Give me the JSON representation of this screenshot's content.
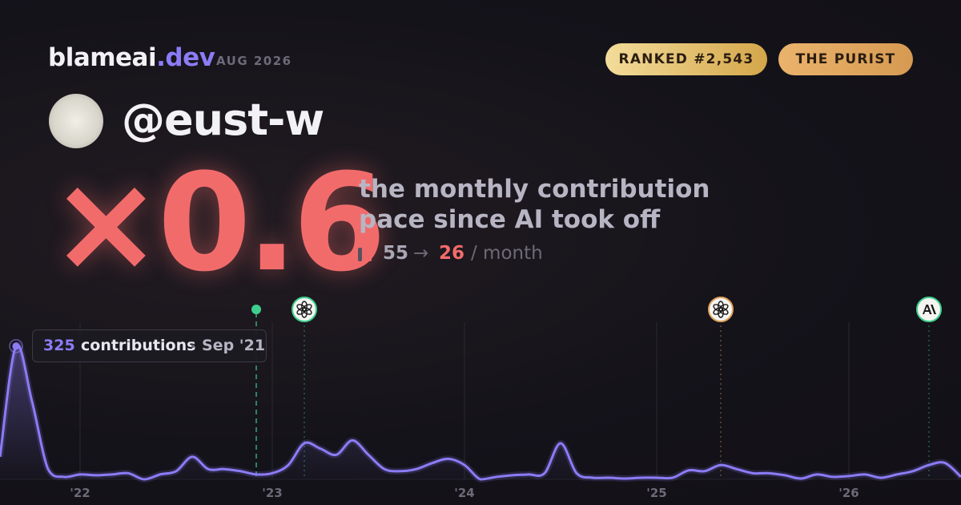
{
  "header": {
    "brand": "blameai",
    "brand_tld": ".dev",
    "date": "AUG 2026"
  },
  "badges": [
    "RANKED #2,543",
    "THE PURIST"
  ],
  "user": {
    "handle": "@eust-w"
  },
  "headline": {
    "multiplier": "×0.6",
    "caption_lines": [
      "the monthly contribution",
      "pace since AI took off"
    ],
    "before": "55",
    "arrow": "→",
    "after": "26",
    "unit": "/ month"
  },
  "chart_data": {
    "type": "line",
    "x": [
      "2021-08",
      "2021-09",
      "2021-10",
      "2021-11",
      "2021-12",
      "2022-01",
      "2022-02",
      "2022-03",
      "2022-04",
      "2022-05",
      "2022-06",
      "2022-07",
      "2022-08",
      "2022-09",
      "2022-10",
      "2022-11",
      "2022-12",
      "2023-01",
      "2023-02",
      "2023-03",
      "2023-04",
      "2023-05",
      "2023-06",
      "2023-07",
      "2023-08",
      "2023-09",
      "2023-10",
      "2023-11",
      "2023-12",
      "2024-01",
      "2024-02",
      "2024-03",
      "2024-04",
      "2024-05",
      "2024-06",
      "2024-07",
      "2024-08",
      "2024-09",
      "2024-10",
      "2024-11",
      "2024-12",
      "2025-01",
      "2025-02",
      "2025-03",
      "2025-04",
      "2025-05",
      "2025-06",
      "2025-07",
      "2025-08",
      "2025-09",
      "2025-10",
      "2025-11",
      "2025-12",
      "2026-01",
      "2026-02",
      "2026-03",
      "2026-04",
      "2026-05",
      "2026-06",
      "2026-07",
      "2026-08"
    ],
    "series": [
      {
        "name": "contributions",
        "color": "#8b7cf6",
        "values": [
          55,
          325,
          190,
          25,
          6,
          12,
          10,
          12,
          15,
          0,
          12,
          20,
          55,
          25,
          25,
          20,
          12,
          15,
          35,
          88,
          75,
          60,
          95,
          60,
          25,
          20,
          25,
          40,
          50,
          35,
          0,
          6,
          10,
          12,
          15,
          88,
          15,
          4,
          4,
          2,
          4,
          4,
          4,
          22,
          20,
          35,
          25,
          15,
          15,
          10,
          2,
          12,
          6,
          8,
          12,
          4,
          12,
          20,
          35,
          40,
          6
        ]
      }
    ],
    "xlim": [
      "2021-08",
      "2026-08"
    ],
    "xticks": [
      {
        "value": "2022-01",
        "label": "'22"
      },
      {
        "value": "2023-01",
        "label": "'23"
      },
      {
        "value": "2024-01",
        "label": "'24"
      },
      {
        "value": "2025-01",
        "label": "'25"
      },
      {
        "value": "2026-01",
        "label": "'26"
      }
    ],
    "ylim": [
      0,
      350
    ],
    "grid": true,
    "ai_start": {
      "x": "2022-12",
      "color": "#3ecf8e"
    },
    "events": [
      {
        "x": "2023-03",
        "color": "#3ecf8e",
        "icon": "openai"
      },
      {
        "x": "2025-05",
        "color": "#e0a15c",
        "icon": "openai"
      },
      {
        "x": "2026-06",
        "color": "#3ecf8e",
        "icon": "anthropic"
      }
    ],
    "tooltip": {
      "label": "contributions",
      "date": "Sep '21"
    }
  }
}
